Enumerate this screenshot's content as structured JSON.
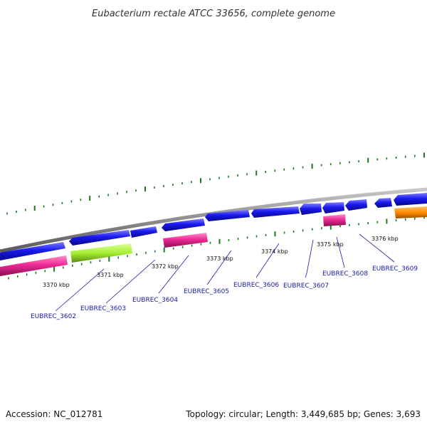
{
  "title": "Eubacterium rectale ATCC 33656, complete genome",
  "footer": {
    "accession": "Accession: NC_012781",
    "summary": "Topology: circular; Length: 3,449,685 bp; Genes: 3,693"
  },
  "tick_labels": [
    "3370 kbp",
    "3371 kbp",
    "3372 kbp",
    "3373 kbp",
    "3374 kbp",
    "3375 kbp",
    "3376 kbp"
  ],
  "gene_labels": [
    "EUBREC_3602",
    "EUBREC_3603",
    "EUBREC_3604",
    "EUBREC_3605",
    "EUBREC_3606",
    "EUBREC_3607",
    "EUBREC_3608",
    "EUBREC_3609"
  ],
  "colors": {
    "backbone": "#8c8c8c",
    "forward_cds": "#1010e6",
    "magenta_feature": "#e0208a",
    "lime_feature": "#a0f030",
    "orange_feature": "#ff8c00",
    "tick_green": "#1a7a1a",
    "label_blue": "#1a1aa8"
  }
}
